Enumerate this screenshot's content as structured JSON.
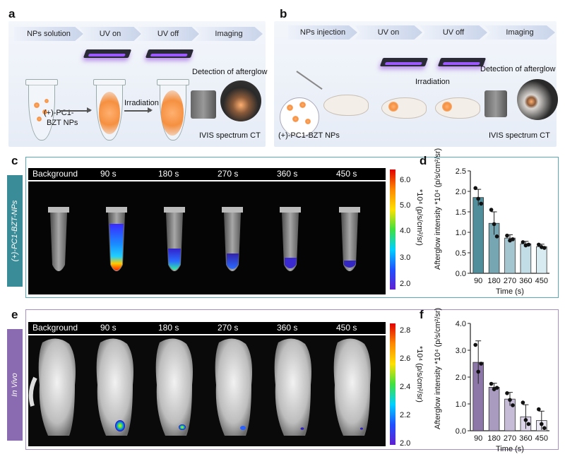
{
  "panel_letters": {
    "a": "a",
    "b": "b",
    "c": "c",
    "d": "d",
    "e": "e",
    "f": "f"
  },
  "panel_a": {
    "steps": [
      "NPs solution",
      "UV on",
      "UV off",
      "Imaging"
    ],
    "sample_label_1": "(+)-PC1-",
    "sample_label_2": "BZT NPs",
    "irradiation": "Irradiation",
    "detection": "Detection of afterglow",
    "instrument": "IVIS spectrum CT"
  },
  "panel_b": {
    "steps": [
      "NPs injection",
      "UV on",
      "UV off",
      "Imaging"
    ],
    "irradiation": "Irradiation",
    "detection": "Detection of afterglow",
    "np_label": "(+)-PC1-BZT NPs",
    "instrument": "IVIS spectrum CT"
  },
  "panel_c": {
    "side_label": "(+)-PC1-BZT-NPs",
    "times": [
      "Background",
      "90 s",
      "180 s",
      "270 s",
      "360 s",
      "450 s"
    ],
    "colorbar_ticks": [
      "6.0",
      "5.0",
      "4.0",
      "3.0",
      "2.0"
    ],
    "colorbar_label": "*10⁴ (p/s/cm²/sr)"
  },
  "panel_e": {
    "side_label": "In Vivo",
    "times": [
      "Background",
      "90 s",
      "180 s",
      "270 s",
      "360 s",
      "450 s"
    ],
    "colorbar_ticks": [
      "2.8",
      "2.6",
      "2.4",
      "2.2",
      "2.0"
    ],
    "colorbar_label": "*10⁴ (p/s/cm²/sr)"
  },
  "chart_data": [
    {
      "panel": "d",
      "type": "bar",
      "categories": [
        "90",
        "180",
        "270",
        "360",
        "450"
      ],
      "values": [
        1.85,
        1.22,
        0.86,
        0.72,
        0.65
      ],
      "errors": [
        0.2,
        0.28,
        0.08,
        0.06,
        0.06
      ],
      "points": [
        [
          2.08,
          1.82,
          1.7
        ],
        [
          1.55,
          1.2,
          0.9
        ],
        [
          0.92,
          0.8,
          0.83
        ],
        [
          0.76,
          0.68,
          0.7
        ],
        [
          0.7,
          0.64,
          0.62
        ]
      ],
      "colors": [
        "#4f8e9a",
        "#76a6b2",
        "#a4c6d0",
        "#c2dde5",
        "#d8ebf0"
      ],
      "xlabel": "Time (s)",
      "ylabel": "Afterglow intensity *10⁴ (p/s/cm²/sr)",
      "ylim": [
        0,
        2.5
      ],
      "yticks": [
        "0.0",
        "0.5",
        "1.0",
        "1.5",
        "2.0",
        "2.5"
      ]
    },
    {
      "panel": "f",
      "type": "bar",
      "categories": [
        "90",
        "180",
        "270",
        "360",
        "450"
      ],
      "values": [
        2.55,
        1.62,
        1.18,
        0.52,
        0.38
      ],
      "errors": [
        0.8,
        0.15,
        0.25,
        0.45,
        0.35
      ],
      "points": [
        [
          3.2,
          2.2,
          2.5
        ],
        [
          1.75,
          1.55,
          1.6
        ],
        [
          1.4,
          1.15,
          0.95
        ],
        [
          1.05,
          0.4,
          0.25
        ],
        [
          0.8,
          0.25,
          0.1
        ]
      ],
      "colors": [
        "#8c77a8",
        "#a99bc0",
        "#c6bcd8",
        "#ddd6ea",
        "#ece8f3"
      ],
      "xlabel": "Time (s)",
      "ylabel": "Afterglow intensity *10⁴ (p/s/cm²/sr)",
      "ylim": [
        0,
        4.0
      ],
      "yticks": [
        "0.0",
        "1.0",
        "2.0",
        "3.0",
        "4.0"
      ]
    }
  ]
}
